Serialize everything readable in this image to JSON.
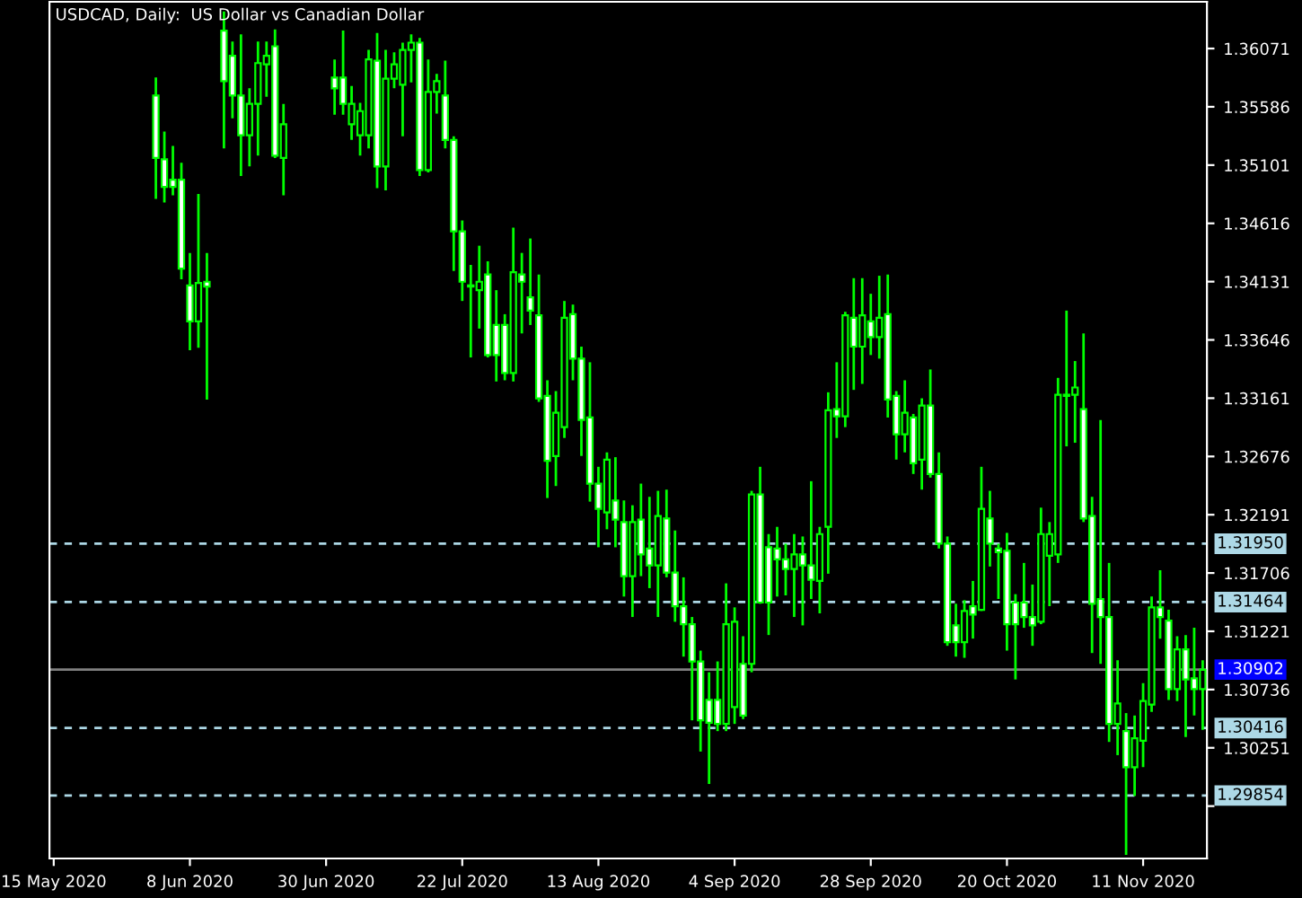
{
  "chart_data": {
    "type": "candlestick",
    "title": "USDCAD, Daily:  US Dollar vs Canadian Dollar",
    "color": "#00ff00",
    "categories": [
      "15 May 2020",
      null,
      null,
      null,
      null,
      null,
      null,
      null,
      null,
      null,
      null,
      null,
      null,
      null,
      null,
      null,
      "8 Jun 2020",
      null,
      null,
      null,
      null,
      null,
      null,
      null,
      null,
      null,
      null,
      null,
      null,
      null,
      null,
      null,
      "30 Jun 2020",
      null,
      null,
      null,
      null,
      null,
      null,
      null,
      null,
      null,
      null,
      null,
      null,
      null,
      null,
      null,
      "22 Jul 2020",
      null,
      null,
      null,
      null,
      null,
      null,
      null,
      null,
      null,
      null,
      null,
      null,
      null,
      null,
      null,
      "13 Aug 2020",
      null,
      null,
      null,
      null,
      null,
      null,
      null,
      null,
      null,
      null,
      null,
      null,
      null,
      null,
      null,
      "4 Sep 2020",
      null,
      null,
      null,
      null,
      null,
      null,
      null,
      null,
      null,
      null,
      null,
      null,
      null,
      null,
      null,
      "28 Sep 2020",
      null,
      null,
      null,
      null,
      null,
      null,
      null,
      null,
      null,
      null,
      null,
      null,
      null,
      null,
      null,
      "20 Oct 2020",
      null,
      null,
      null,
      null,
      null,
      null,
      null,
      null,
      null,
      null,
      null,
      null,
      null,
      null,
      null,
      "11 Nov 2020",
      null,
      null,
      null,
      null,
      null,
      null,
      null
    ],
    "ohlc": [
      null,
      null,
      null,
      null,
      null,
      null,
      null,
      null,
      null,
      null,
      null,
      null,
      [
        1.3568,
        1.3583,
        1.3482,
        1.3516
      ],
      [
        1.3515,
        1.3538,
        1.3479,
        1.3492
      ],
      [
        1.3498,
        1.3526,
        1.3485,
        1.3492
      ],
      [
        1.3498,
        1.3512,
        1.3415,
        1.3424
      ],
      [
        1.341,
        1.3437,
        1.3356,
        1.338
      ],
      [
        1.338,
        1.3486,
        1.3358,
        1.3412
      ],
      [
        1.3413,
        1.3437,
        1.3315,
        1.3409
      ],
      null,
      [
        1.3622,
        1.3638,
        1.3524,
        1.358
      ],
      [
        1.3601,
        1.3613,
        1.3549,
        1.3568
      ],
      [
        1.3568,
        1.3619,
        1.3501,
        1.3535
      ],
      [
        1.3535,
        1.3574,
        1.3509,
        1.3561
      ],
      [
        1.3561,
        1.3613,
        1.3518,
        1.3595
      ],
      [
        1.3594,
        1.3613,
        1.3567,
        1.3601
      ],
      [
        1.3609,
        1.3623,
        1.3516,
        1.3518
      ],
      [
        1.3516,
        1.3561,
        1.3485,
        1.3544
      ],
      null,
      null,
      null,
      null,
      null,
      [
        1.3583,
        1.3598,
        1.3552,
        1.3574
      ],
      [
        1.3583,
        1.3622,
        1.3552,
        1.3561
      ],
      [
        1.3544,
        1.3576,
        1.3531,
        1.3561
      ],
      [
        1.3535,
        1.3562,
        1.3518,
        1.3555
      ],
      [
        1.3535,
        1.3606,
        1.3524,
        1.3598
      ],
      [
        1.3597,
        1.362,
        1.3491,
        1.3509
      ],
      [
        1.3509,
        1.3606,
        1.3489,
        1.3582
      ],
      [
        1.3582,
        1.3604,
        1.3574,
        1.3594
      ],
      [
        1.3577,
        1.3612,
        1.3534,
        1.3606
      ],
      [
        1.3606,
        1.3619,
        1.3579,
        1.3612
      ],
      [
        1.3612,
        1.3616,
        1.3501,
        1.3506
      ],
      [
        1.3506,
        1.3598,
        1.3504,
        1.3571
      ],
      [
        1.3571,
        1.3586,
        1.3553,
        1.358
      ],
      [
        1.3568,
        1.3597,
        1.3524,
        1.3531
      ],
      [
        1.3531,
        1.3534,
        1.3422,
        1.3455
      ],
      [
        1.3455,
        1.3464,
        1.3397,
        1.3413
      ],
      [
        1.341,
        1.3427,
        1.335,
        1.3409
      ],
      [
        1.3406,
        1.3443,
        1.3374,
        1.3413
      ],
      [
        1.3419,
        1.343,
        1.335,
        1.3352
      ],
      [
        1.3377,
        1.3406,
        1.333,
        1.3352
      ],
      [
        1.3377,
        1.3386,
        1.3331,
        1.3337
      ],
      [
        1.3337,
        1.3458,
        1.333,
        1.3421
      ],
      [
        1.3419,
        1.3437,
        1.337,
        1.3413
      ],
      [
        1.34,
        1.3449,
        1.3377,
        1.3389
      ],
      [
        1.3385,
        1.3419,
        1.3313,
        1.3316
      ],
      [
        1.3318,
        1.3331,
        1.3233,
        1.3264
      ],
      [
        1.3268,
        1.3322,
        1.3243,
        1.3304
      ],
      [
        1.3292,
        1.3397,
        1.3283,
        1.3383
      ],
      [
        1.3386,
        1.3394,
        1.3331,
        1.3349
      ],
      [
        1.3349,
        1.3359,
        1.3268,
        1.3298
      ],
      [
        1.33,
        1.3346,
        1.323,
        1.3245
      ],
      [
        1.3245,
        1.3259,
        1.3192,
        1.3224
      ],
      [
        1.3221,
        1.3271,
        1.3207,
        1.3265
      ],
      [
        1.3231,
        1.3267,
        1.3192,
        1.3215
      ],
      [
        1.3213,
        1.3231,
        1.3151,
        1.3168
      ],
      [
        1.3168,
        1.3227,
        1.3134,
        1.3213
      ],
      [
        1.3215,
        1.3245,
        1.3168,
        1.3186
      ],
      [
        1.3191,
        1.3234,
        1.3158,
        1.3177
      ],
      [
        1.3177,
        1.3239,
        1.3134,
        1.3218
      ],
      [
        1.3216,
        1.324,
        1.3167,
        1.3171
      ],
      [
        1.3171,
        1.3206,
        1.313,
        1.3143
      ],
      [
        1.3143,
        1.3167,
        1.3101,
        1.3128
      ],
      [
        1.3128,
        1.3134,
        1.3048,
        1.3097
      ],
      [
        1.3097,
        1.3106,
        1.3022,
        1.3048
      ],
      [
        1.3065,
        1.3088,
        1.2995,
        1.3046
      ],
      [
        1.3065,
        1.3097,
        1.3039,
        1.3045
      ],
      [
        1.3045,
        1.3162,
        1.3039,
        1.3128
      ],
      [
        1.3059,
        1.3142,
        1.3045,
        1.313
      ],
      [
        1.3095,
        1.3118,
        1.3049,
        1.3052
      ],
      [
        1.3095,
        1.3239,
        1.3088,
        1.3236
      ],
      [
        1.3236,
        1.3259,
        1.3145,
        1.3146
      ],
      [
        1.3192,
        1.3203,
        1.3119,
        1.3146
      ],
      [
        1.3191,
        1.3209,
        1.3151,
        1.3182
      ],
      [
        1.3182,
        1.3195,
        1.3152,
        1.3174
      ],
      [
        1.3174,
        1.3203,
        1.3134,
        1.3186
      ],
      [
        1.3186,
        1.3201,
        1.3127,
        1.3177
      ],
      [
        1.3177,
        1.3247,
        1.3149,
        1.3165
      ],
      [
        1.3164,
        1.3209,
        1.3137,
        1.3203
      ],
      [
        1.3209,
        1.3321,
        1.317,
        1.3306
      ],
      [
        1.3307,
        1.3346,
        1.3283,
        1.3301
      ],
      [
        1.3301,
        1.3388,
        1.3292,
        1.3385
      ],
      [
        1.3383,
        1.3416,
        1.3323,
        1.3359
      ],
      [
        1.3359,
        1.3416,
        1.3328,
        1.3385
      ],
      [
        1.338,
        1.3403,
        1.3352,
        1.3367
      ],
      [
        1.3367,
        1.3418,
        1.3349,
        1.3383
      ],
      [
        1.3386,
        1.3419,
        1.33,
        1.3315
      ],
      [
        1.3318,
        1.3322,
        1.3265,
        1.3286
      ],
      [
        1.3286,
        1.3331,
        1.3271,
        1.3304
      ],
      [
        1.33,
        1.3303,
        1.3253,
        1.3262
      ],
      [
        1.3265,
        1.3316,
        1.324,
        1.331
      ],
      [
        1.331,
        1.334,
        1.325,
        1.3253
      ],
      [
        1.3253,
        1.3271,
        1.3191,
        1.3195
      ],
      [
        1.3195,
        1.3201,
        1.311,
        1.3113
      ],
      [
        1.3127,
        1.3145,
        1.3101,
        1.3113
      ],
      [
        1.3113,
        1.3148,
        1.31,
        1.3139
      ],
      [
        1.3143,
        1.3164,
        1.3116,
        1.3136
      ],
      [
        1.314,
        1.3259,
        1.3139,
        1.3224
      ],
      [
        1.3216,
        1.3239,
        1.3176,
        1.3195
      ],
      [
        1.3191,
        1.3195,
        1.3149,
        1.3188
      ],
      [
        1.3189,
        1.3204,
        1.3106,
        1.3128
      ],
      [
        1.3146,
        1.3153,
        1.3082,
        1.3128
      ],
      [
        1.3146,
        1.3179,
        1.3125,
        1.3134
      ],
      [
        1.3134,
        1.3161,
        1.311,
        1.3127
      ],
      [
        1.313,
        1.3225,
        1.3128,
        1.3203
      ],
      [
        1.3185,
        1.3213,
        1.3143,
        1.3203
      ],
      [
        1.3186,
        1.3333,
        1.3179,
        1.3319
      ],
      [
        1.3319,
        1.3389,
        1.3276,
        1.3318
      ],
      [
        1.3319,
        1.3347,
        1.3279,
        1.3325
      ],
      [
        1.3307,
        1.337,
        1.3213,
        1.3216
      ],
      [
        1.3218,
        1.3234,
        1.3104,
        1.3145
      ],
      [
        1.3149,
        1.3298,
        1.3095,
        1.3134
      ],
      [
        1.3134,
        1.3179,
        1.303,
        1.3045
      ],
      [
        1.3045,
        1.3098,
        1.3019,
        1.3062
      ],
      [
        1.3039,
        1.3054,
        1.2936,
        1.3009
      ],
      [
        1.3009,
        1.3052,
        1.2985,
        1.3033
      ],
      [
        1.3031,
        1.3079,
        1.3009,
        1.3064
      ],
      [
        1.3061,
        1.3151,
        1.3055,
        1.3142
      ],
      [
        1.3142,
        1.3173,
        1.3116,
        1.3134
      ],
      [
        1.3131,
        1.314,
        1.3065,
        1.3074
      ],
      [
        1.3074,
        1.3118,
        1.3064,
        1.3107
      ],
      [
        1.3107,
        1.3119,
        1.3034,
        1.3082
      ],
      [
        1.3083,
        1.3125,
        1.3052,
        1.3074
      ],
      [
        1.3074,
        1.3098,
        1.304,
        1.309
      ]
    ],
    "ylim": [
      1.2933,
      1.3646
    ],
    "yticks": [
      1.36071,
      1.35586,
      1.35101,
      1.34616,
      1.34131,
      1.33646,
      1.33161,
      1.32676,
      1.32191,
      1.31706,
      1.31221,
      1.30736,
      1.30251,
      {
        "value": 1.29766,
        "label": null
      }
    ],
    "ref_lines": [
      {
        "axis": "y",
        "value": 1.3195,
        "label": "1.31950",
        "color": "#add8e6",
        "line_style": "dashed"
      },
      {
        "axis": "y",
        "value": 1.31464,
        "label": "1.31464",
        "color": "#add8e6",
        "line_style": "dashed"
      },
      {
        "axis": "y",
        "value": 1.30902,
        "label": "1.30902",
        "color": "#808080",
        "line_style": "solid"
      },
      {
        "axis": "y",
        "value": 1.30416,
        "label": "1.30416",
        "color": "#add8e6",
        "line_style": "dashed"
      },
      {
        "axis": "y",
        "value": 1.29854,
        "label": "1.29854",
        "color": "#add8e6",
        "line_style": "dashed"
      }
    ],
    "grid": false
  }
}
